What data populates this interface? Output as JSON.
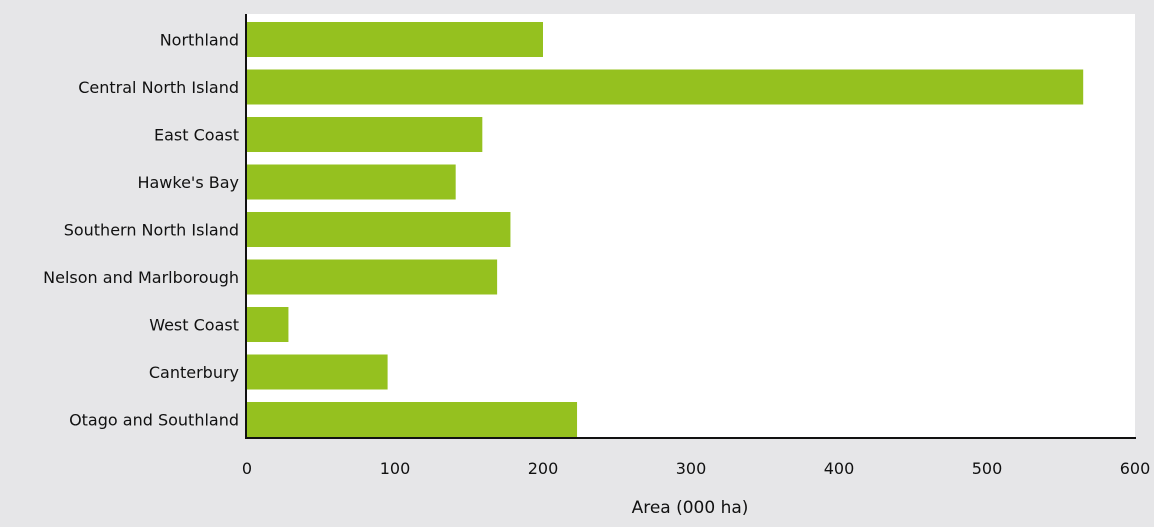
{
  "chart_data": {
    "type": "bar",
    "orientation": "horizontal",
    "categories": [
      "Northland",
      "Central North Island",
      "East Coast",
      "Hawke's Bay",
      "Southern North Island",
      "Nelson and Marlborough",
      "West Coast",
      "Canterbury",
      "Otago and Southland"
    ],
    "values": [
      200,
      565,
      159,
      141,
      178,
      169,
      28,
      95,
      223
    ],
    "xlabel": "Area (000 ha)",
    "ylabel": "",
    "title": "",
    "xlim": [
      0,
      600
    ],
    "x_ticks": [
      0,
      100,
      200,
      300,
      400,
      500,
      600
    ],
    "x_tick_labels": [
      "0",
      "100",
      "200",
      "300",
      "400",
      "500",
      "600"
    ],
    "grid": false,
    "legend": "none",
    "bar_color": "#95c11f",
    "background_color": "#e6e6e8",
    "plot_background_color": "#ffffff"
  }
}
